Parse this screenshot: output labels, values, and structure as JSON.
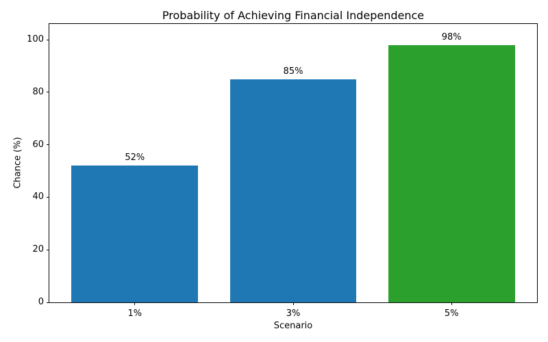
{
  "chart_data": {
    "type": "bar",
    "title": "Probability of Achieving Financial Independence",
    "xlabel": "Scenario",
    "ylabel": "Chance (%)",
    "categories": [
      "1%",
      "3%",
      "5%"
    ],
    "x": [
      0,
      1,
      2
    ],
    "values": [
      52,
      85,
      98
    ],
    "value_labels": [
      "52%",
      "85%",
      "98%"
    ],
    "bar_colors": [
      "#1f77b4",
      "#1f77b4",
      "#2ca02c"
    ],
    "bar_width": 0.8,
    "xlim": [
      -0.54,
      2.54
    ],
    "ylim": [
      0,
      106
    ],
    "yticks": [
      0,
      20,
      40,
      60,
      80,
      100
    ],
    "grid": false,
    "legend_position": "none",
    "background_color": "#ffffff",
    "text_color": "#000000",
    "spine_color": "#000000"
  }
}
